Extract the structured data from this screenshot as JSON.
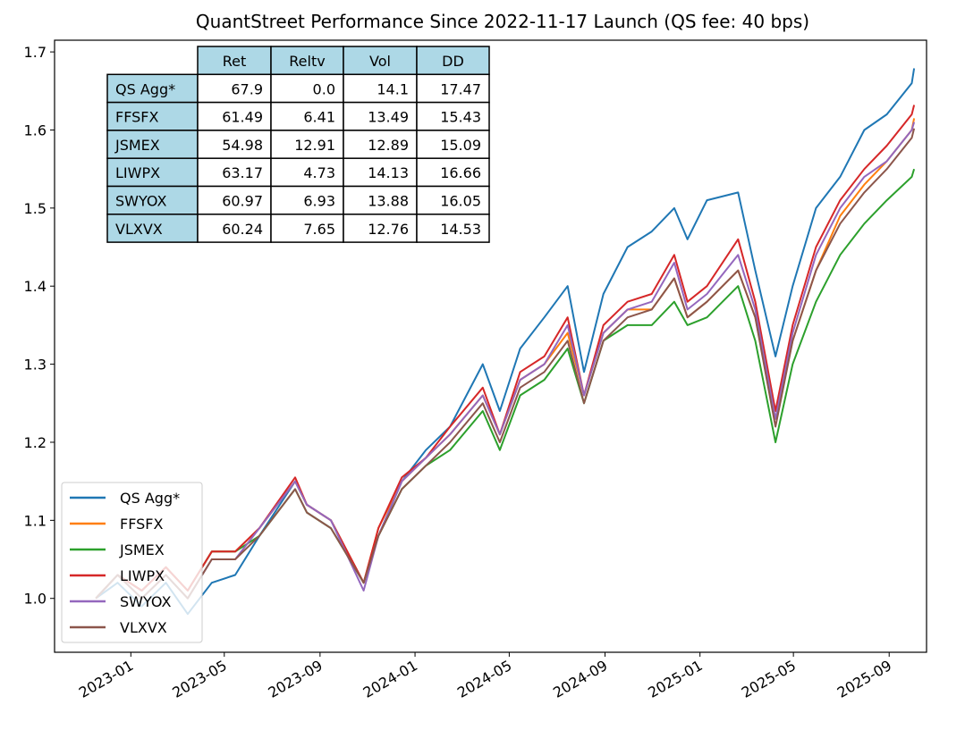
{
  "chart_data": {
    "type": "line",
    "title": "QuantStreet Performance Since 2022-11-17 Launch  (QS fee: 40 bps)",
    "xlabel": "",
    "ylabel": "",
    "ylim": [
      0.931,
      1.715
    ],
    "xlim": [
      "2022-09-25",
      "2025-10-19"
    ],
    "yticks": [
      1.0,
      1.1,
      1.2,
      1.3,
      1.4,
      1.5,
      1.6,
      1.7
    ],
    "ytick_labels": [
      "1.0",
      "1.1",
      "1.2",
      "1.3",
      "1.4",
      "1.5",
      "1.6",
      "1.7"
    ],
    "xticks": [
      "2023-01-01",
      "2023-05-01",
      "2023-09-01",
      "2024-01-01",
      "2024-05-01",
      "2024-09-01",
      "2025-01-01",
      "2025-05-01",
      "2025-09-01"
    ],
    "xtick_labels": [
      "2023-01",
      "2023-05",
      "2023-09",
      "2024-01",
      "2024-05",
      "2024-09",
      "2025-01",
      "2025-05",
      "2025-09"
    ],
    "grid": false,
    "legend_placement": "lower-left",
    "x": [
      "2022-11-17",
      "2022-12-15",
      "2023-01-15",
      "2023-02-15",
      "2023-03-15",
      "2023-04-15",
      "2023-05-15",
      "2023-06-15",
      "2023-07-31",
      "2023-08-15",
      "2023-09-15",
      "2023-10-27",
      "2023-11-15",
      "2023-12-15",
      "2024-01-15",
      "2024-02-15",
      "2024-03-28",
      "2024-04-19",
      "2024-05-15",
      "2024-06-15",
      "2024-07-15",
      "2024-08-05",
      "2024-08-30",
      "2024-09-30",
      "2024-10-31",
      "2024-11-29",
      "2024-12-16",
      "2025-01-10",
      "2025-02-19",
      "2025-03-13",
      "2025-04-08",
      "2025-04-30",
      "2025-05-30",
      "2025-06-30",
      "2025-07-31",
      "2025-08-29",
      "2025-09-30",
      "2025-10-03"
    ],
    "series": [
      {
        "name": "QS Agg*",
        "color": "#1f77b4",
        "values": [
          1.0,
          1.02,
          0.99,
          1.02,
          0.98,
          1.02,
          1.03,
          1.08,
          1.15,
          1.12,
          1.1,
          1.02,
          1.08,
          1.15,
          1.19,
          1.22,
          1.3,
          1.24,
          1.32,
          1.36,
          1.4,
          1.29,
          1.39,
          1.45,
          1.47,
          1.5,
          1.46,
          1.51,
          1.52,
          1.42,
          1.31,
          1.4,
          1.5,
          1.54,
          1.6,
          1.62,
          1.66,
          1.679
        ]
      },
      {
        "name": "FFSFX",
        "color": "#ff7f0e",
        "values": [
          1.0,
          1.03,
          1.01,
          1.04,
          1.01,
          1.06,
          1.06,
          1.09,
          1.15,
          1.12,
          1.1,
          1.02,
          1.09,
          1.15,
          1.18,
          1.21,
          1.26,
          1.21,
          1.28,
          1.3,
          1.34,
          1.26,
          1.34,
          1.37,
          1.37,
          1.41,
          1.36,
          1.38,
          1.42,
          1.36,
          1.23,
          1.33,
          1.42,
          1.49,
          1.53,
          1.56,
          1.6,
          1.615
        ]
      },
      {
        "name": "JSMEX",
        "color": "#2ca02c",
        "values": [
          1.0,
          1.03,
          1.01,
          1.04,
          1.01,
          1.06,
          1.06,
          1.08,
          1.14,
          1.11,
          1.09,
          1.02,
          1.08,
          1.14,
          1.17,
          1.19,
          1.24,
          1.19,
          1.26,
          1.28,
          1.32,
          1.25,
          1.33,
          1.35,
          1.35,
          1.38,
          1.35,
          1.36,
          1.4,
          1.33,
          1.2,
          1.3,
          1.38,
          1.44,
          1.48,
          1.51,
          1.54,
          1.55
        ]
      },
      {
        "name": "LIWPX",
        "color": "#d62728",
        "values": [
          1.0,
          1.03,
          1.01,
          1.04,
          1.01,
          1.06,
          1.06,
          1.09,
          1.155,
          1.12,
          1.1,
          1.02,
          1.09,
          1.155,
          1.18,
          1.22,
          1.27,
          1.21,
          1.29,
          1.31,
          1.36,
          1.26,
          1.35,
          1.38,
          1.39,
          1.44,
          1.38,
          1.4,
          1.46,
          1.38,
          1.24,
          1.35,
          1.45,
          1.51,
          1.55,
          1.58,
          1.62,
          1.632
        ]
      },
      {
        "name": "SWYOX",
        "color": "#9467bd",
        "values": [
          1.0,
          1.03,
          1.0,
          1.03,
          1.0,
          1.05,
          1.05,
          1.09,
          1.15,
          1.12,
          1.1,
          1.01,
          1.08,
          1.15,
          1.18,
          1.21,
          1.26,
          1.21,
          1.28,
          1.3,
          1.35,
          1.26,
          1.34,
          1.37,
          1.38,
          1.43,
          1.37,
          1.39,
          1.44,
          1.37,
          1.23,
          1.34,
          1.44,
          1.5,
          1.54,
          1.56,
          1.6,
          1.61
        ]
      },
      {
        "name": "VLXVX",
        "color": "#8c564b",
        "values": [
          1.0,
          1.03,
          1.0,
          1.03,
          1.0,
          1.05,
          1.05,
          1.08,
          1.14,
          1.11,
          1.09,
          1.02,
          1.08,
          1.14,
          1.17,
          1.2,
          1.25,
          1.2,
          1.27,
          1.29,
          1.33,
          1.25,
          1.33,
          1.36,
          1.37,
          1.41,
          1.36,
          1.38,
          1.42,
          1.36,
          1.22,
          1.33,
          1.42,
          1.48,
          1.52,
          1.55,
          1.59,
          1.602
        ]
      }
    ],
    "table": {
      "header_color": "#add8e6",
      "columns": [
        "Ret",
        "Reltv",
        "Vol",
        "DD"
      ],
      "rows": [
        {
          "label": "QS Agg*",
          "cells": [
            "67.9",
            "0.0",
            "14.1",
            "17.47"
          ]
        },
        {
          "label": "FFSFX",
          "cells": [
            "61.49",
            "6.41",
            "13.49",
            "15.43"
          ]
        },
        {
          "label": "JSMEX",
          "cells": [
            "54.98",
            "12.91",
            "12.89",
            "15.09"
          ]
        },
        {
          "label": "LIWPX",
          "cells": [
            "63.17",
            "4.73",
            "14.13",
            "16.66"
          ]
        },
        {
          "label": "SWYOX",
          "cells": [
            "60.97",
            "6.93",
            "13.88",
            "16.05"
          ]
        },
        {
          "label": "VLXVX",
          "cells": [
            "60.24",
            "7.65",
            "12.76",
            "14.53"
          ]
        }
      ]
    }
  }
}
